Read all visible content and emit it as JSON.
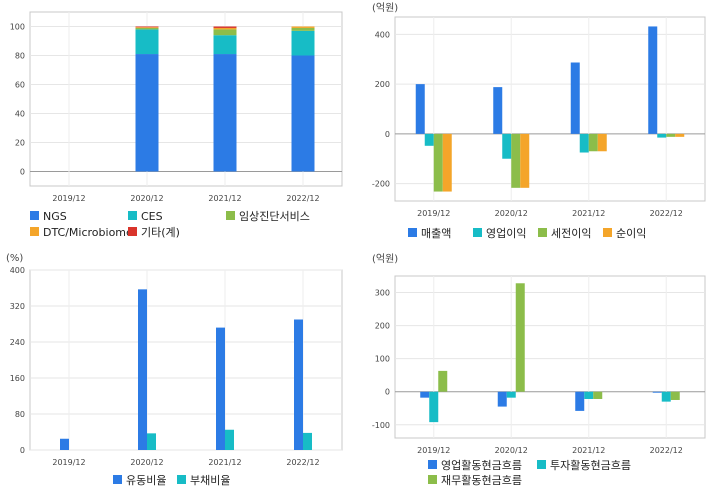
{
  "chart_data": [
    {
      "id": "composition",
      "type": "bar",
      "stacked": true,
      "categories": [
        "2019/12",
        "2020/12",
        "2021/12",
        "2022/12"
      ],
      "unit": "",
      "ylim": [
        -10,
        110
      ],
      "yticks": [
        0,
        20,
        40,
        60,
        80,
        100
      ],
      "grid": true,
      "series": [
        {
          "name": "NGS",
          "color": "#2c7be5",
          "values": [
            0,
            81,
            81,
            80
          ]
        },
        {
          "name": "CES",
          "color": "#17bcc6",
          "values": [
            0,
            17,
            13,
            17
          ]
        },
        {
          "name": "임상진단서비스",
          "color": "#8cbd4a",
          "values": [
            0,
            1,
            4,
            2
          ]
        },
        {
          "name": "DTC/Microbiome",
          "color": "#f4a52a",
          "values": [
            0,
            0.5,
            1,
            1
          ]
        },
        {
          "name": "기타(계)",
          "color": "#d9342b",
          "values": [
            0,
            0.5,
            1,
            0
          ]
        }
      ]
    },
    {
      "id": "profit",
      "type": "bar",
      "categories": [
        "2019/12",
        "2020/12",
        "2021/12",
        "2022/12"
      ],
      "unit": "(억원)",
      "ylim": [
        -270,
        470
      ],
      "yticks": [
        -200,
        0,
        200,
        400
      ],
      "grid": true,
      "series": [
        {
          "name": "매출액",
          "color": "#2c7be5",
          "values": [
            200,
            188,
            287,
            432
          ]
        },
        {
          "name": "영업이익",
          "color": "#17bcc6",
          "values": [
            -48,
            -100,
            -75,
            -15
          ]
        },
        {
          "name": "세전이익",
          "color": "#8cbd4a",
          "values": [
            -232,
            -217,
            -70,
            -12
          ]
        },
        {
          "name": "순이익",
          "color": "#f4a52a",
          "values": [
            -232,
            -217,
            -70,
            -12
          ]
        }
      ]
    },
    {
      "id": "ratios",
      "type": "bar",
      "categories": [
        "2019/12",
        "2020/12",
        "2021/12",
        "2022/12"
      ],
      "unit": "(%)",
      "ylim": [
        0,
        400
      ],
      "yticks": [
        0,
        80,
        160,
        240,
        320,
        400
      ],
      "grid": true,
      "series": [
        {
          "name": "유동비율",
          "color": "#2c7be5",
          "values": [
            25,
            357,
            272,
            290
          ]
        },
        {
          "name": "부채비율",
          "color": "#17bcc6",
          "values": [
            0,
            37,
            45,
            38
          ]
        }
      ]
    },
    {
      "id": "cashflow",
      "type": "bar",
      "categories": [
        "2019/12",
        "2020/12",
        "2021/12",
        "2022/12"
      ],
      "unit": "(억원)",
      "ylim": [
        -140,
        350
      ],
      "yticks": [
        -100,
        0,
        100,
        200,
        300
      ],
      "grid": true,
      "series": [
        {
          "name": "영업활동현금흐름",
          "color": "#2c7be5",
          "values": [
            -18,
            -45,
            -58,
            -3
          ]
        },
        {
          "name": "투자활동현금흐름",
          "color": "#17bcc6",
          "values": [
            -92,
            -18,
            -22,
            -30
          ]
        },
        {
          "name": "재무활동현금흐름",
          "color": "#8cbd4a",
          "values": [
            63,
            328,
            -22,
            -25
          ]
        }
      ]
    }
  ]
}
